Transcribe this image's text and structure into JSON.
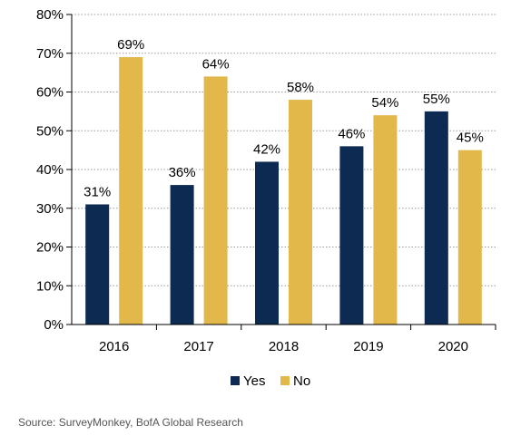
{
  "chart_data": {
    "type": "bar",
    "categories": [
      "2016",
      "2017",
      "2018",
      "2019",
      "2020"
    ],
    "series": [
      {
        "name": "Yes",
        "values": [
          31,
          36,
          42,
          46,
          55
        ],
        "labels": [
          "31%",
          "36%",
          "42%",
          "46%",
          "55%"
        ],
        "color": "#0d2b52"
      },
      {
        "name": "No",
        "values": [
          69,
          64,
          58,
          54,
          45
        ],
        "labels": [
          "69%",
          "64%",
          "58%",
          "54%",
          "45%"
        ],
        "color": "#e3b84a"
      }
    ],
    "ylim": [
      0,
      80
    ],
    "y_ticks": [
      "0%",
      "10%",
      "20%",
      "30%",
      "40%",
      "50%",
      "60%",
      "70%",
      "80%"
    ],
    "grid": true,
    "legend_position": "bottom"
  },
  "source": "Source: SurveyMonkey, BofA  Global Research"
}
